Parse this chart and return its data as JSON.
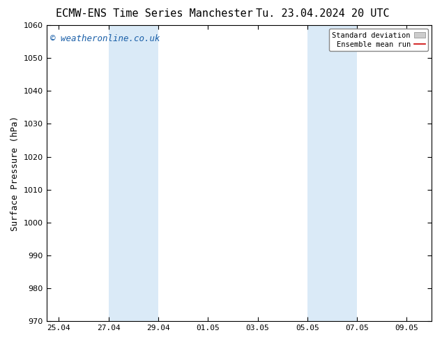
{
  "title_left": "ECMW-ENS Time Series Manchester",
  "title_right": "Tu. 23.04.2024 20 UTC",
  "ylabel": "Surface Pressure (hPa)",
  "ylim": [
    970,
    1060
  ],
  "yticks": [
    970,
    980,
    990,
    1000,
    1010,
    1020,
    1030,
    1040,
    1050,
    1060
  ],
  "xtick_labels": [
    "25.04",
    "27.04",
    "29.04",
    "01.05",
    "03.05",
    "05.05",
    "07.05",
    "09.05"
  ],
  "xtick_positions": [
    0,
    2,
    4,
    6,
    8,
    10,
    12,
    14
  ],
  "xmin": -0.5,
  "xmax": 15.0,
  "shaded_bands": [
    {
      "x_start": 2,
      "x_end": 4
    },
    {
      "x_start": 10,
      "x_end": 12
    }
  ],
  "shade_color": "#daeaf7",
  "shade_alpha": 1.0,
  "watermark_text": "© weatheronline.co.uk",
  "watermark_color": "#1a5fa8",
  "watermark_fontsize": 9,
  "legend_std_label": "Standard deviation",
  "legend_mean_label": "Ensemble mean run",
  "legend_std_facecolor": "#cccccc",
  "legend_std_edgecolor": "#888888",
  "legend_mean_color": "#cc0000",
  "background_color": "#ffffff",
  "spine_color": "#000000",
  "title_fontsize": 11,
  "axis_fontsize": 8,
  "ylabel_fontsize": 9
}
